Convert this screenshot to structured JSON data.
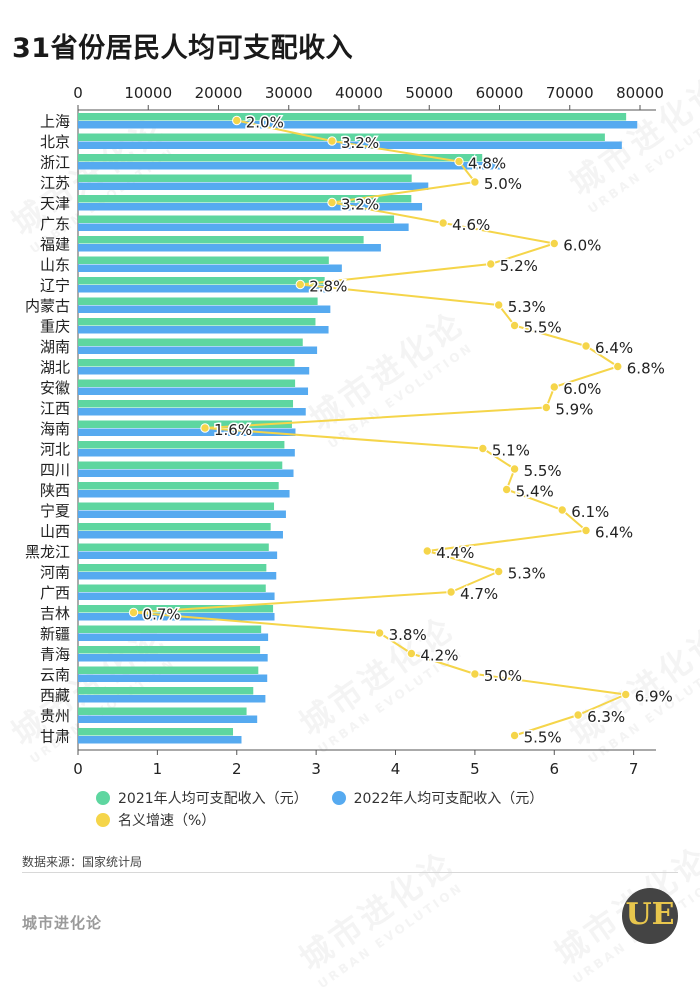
{
  "title": "31省份居民人均可支配收入",
  "chart_data": {
    "type": "bar",
    "title": "31省份居民人均可支配收入",
    "orientation": "horizontal",
    "categories": [
      "上海",
      "北京",
      "浙江",
      "江苏",
      "天津",
      "广东",
      "福建",
      "山东",
      "辽宁",
      "内蒙古",
      "重庆",
      "湖南",
      "湖北",
      "安徽",
      "江西",
      "海南",
      "河北",
      "四川",
      "陕西",
      "宁夏",
      "山西",
      "黑龙江",
      "河南",
      "广西",
      "吉林",
      "新疆",
      "青海",
      "云南",
      "西藏",
      "贵州",
      "甘肃"
    ],
    "series": [
      {
        "name": "2021年人均可支配收入（元）",
        "color": "#5ed6a0",
        "axis": "top",
        "values": [
          78027,
          75002,
          57541,
          47498,
          47449,
          44993,
          40659,
          35705,
          35112,
          34108,
          33803,
          31993,
          30829,
          30904,
          30610,
          30457,
          29383,
          29080,
          28568,
          27905,
          27426,
          27159,
          26811,
          26727,
          27770,
          26075,
          25920,
          25666,
          24950,
          23996,
          22066
        ]
      },
      {
        "name": "2022年人均可支配收入（元）",
        "color": "#56aaf0",
        "axis": "top",
        "values": [
          79610,
          77415,
          60302,
          49862,
          48976,
          47065,
          43118,
          37560,
          36089,
          35921,
          35666,
          34036,
          32914,
          32745,
          32419,
          30957,
          30867,
          30679,
          30116,
          29599,
          29178,
          28346,
          28222,
          27981,
          27975,
          27063,
          27000,
          26937,
          26675,
          25508,
          23273
        ]
      },
      {
        "name": "名义增速（%）",
        "color": "#f5d54a",
        "axis": "bottom",
        "type": "line",
        "values": [
          2.0,
          3.2,
          4.8,
          5.0,
          3.2,
          4.6,
          6.0,
          5.2,
          2.8,
          5.3,
          5.5,
          6.4,
          6.8,
          6.0,
          5.9,
          1.6,
          5.1,
          5.5,
          5.4,
          6.1,
          6.4,
          4.4,
          5.3,
          4.7,
          0.7,
          3.8,
          4.2,
          5.0,
          6.9,
          6.3,
          5.5
        ],
        "labels": [
          "2.0%",
          "3.2%",
          "4.8%",
          "5.0%",
          "3.2%",
          "4.6%",
          "6.0%",
          "5.2%",
          "2.8%",
          "5.3%",
          "5.5%",
          "6.4%",
          "6.8%",
          "6.0%",
          "5.9%",
          "1.6%",
          "5.1%",
          "5.5%",
          "5.4%",
          "6.1%",
          "6.4%",
          "4.4%",
          "5.3%",
          "4.7%",
          "0.7%",
          "3.8%",
          "4.2%",
          "5.0%",
          "6.9%",
          "6.3%",
          "5.5%"
        ]
      }
    ],
    "top_axis": {
      "min": 0,
      "max": 80000,
      "ticks": [
        "0",
        "10000",
        "20000",
        "30000",
        "40000",
        "50000",
        "60000",
        "70000",
        "80000"
      ]
    },
    "bottom_axis": {
      "min": 0,
      "max": 7,
      "ticks": [
        "0",
        "1",
        "2",
        "3",
        "4",
        "5",
        "6",
        "7"
      ]
    }
  },
  "legend": {
    "items": [
      {
        "label": "2021年人均可支配收入（元）",
        "color": "#5ed6a0"
      },
      {
        "label": "2022年人均可支配收入（元）",
        "color": "#56aaf0"
      },
      {
        "label": "名义增速（%）",
        "color": "#f5d54a"
      }
    ]
  },
  "source": "数据来源：国家统计局",
  "brand": "城市进化论",
  "watermark": {
    "cn": "城市进化论",
    "en": "URBAN EVOLUTION"
  },
  "logo_text": "UE"
}
